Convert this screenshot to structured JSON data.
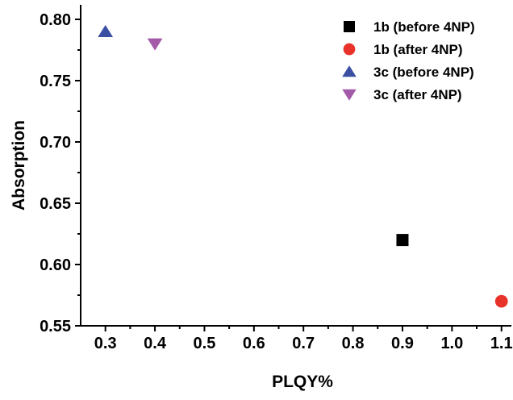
{
  "chart_data": {
    "type": "scatter",
    "title": "",
    "xlabel": "PLQY%",
    "ylabel": "Absorption",
    "xlim": [
      0.25,
      1.12
    ],
    "ylim": [
      0.55,
      0.8
    ],
    "xticks": [
      {
        "value": 0.3,
        "label": "0.3"
      },
      {
        "value": 0.4,
        "label": "0.4"
      },
      {
        "value": 0.5,
        "label": "0.5"
      },
      {
        "value": 0.6,
        "label": "0.6"
      },
      {
        "value": 0.7,
        "label": "0.7"
      },
      {
        "value": 0.8,
        "label": "0.8"
      },
      {
        "value": 0.9,
        "label": "0.9"
      },
      {
        "value": 1.0,
        "label": "1.0"
      },
      {
        "value": 1.1,
        "label": "1.1"
      }
    ],
    "yticks": [
      {
        "value": 0.55,
        "label": "0.55"
      },
      {
        "value": 0.6,
        "label": "0.60"
      },
      {
        "value": 0.65,
        "label": "0.65"
      },
      {
        "value": 0.7,
        "label": "0.70"
      },
      {
        "value": 0.75,
        "label": "0.75"
      },
      {
        "value": 0.8,
        "label": "0.80"
      }
    ],
    "grid": false,
    "legend_position": "top-right",
    "series": [
      {
        "name": "1b (before 4NP)",
        "marker": "square",
        "color": "#000000",
        "points": [
          {
            "x": 0.9,
            "y": 0.62
          }
        ]
      },
      {
        "name": "1b (after 4NP)",
        "marker": "circle",
        "color": "#e8322a",
        "points": [
          {
            "x": 1.1,
            "y": 0.57
          }
        ]
      },
      {
        "name": "3c (before 4NP)",
        "marker": "triangle-up",
        "color": "#3b4fa3",
        "points": [
          {
            "x": 0.3,
            "y": 0.79
          }
        ]
      },
      {
        "name": "3c (after 4NP)",
        "marker": "triangle-down",
        "color": "#a35aa8",
        "points": [
          {
            "x": 0.4,
            "y": 0.78
          }
        ]
      }
    ]
  }
}
